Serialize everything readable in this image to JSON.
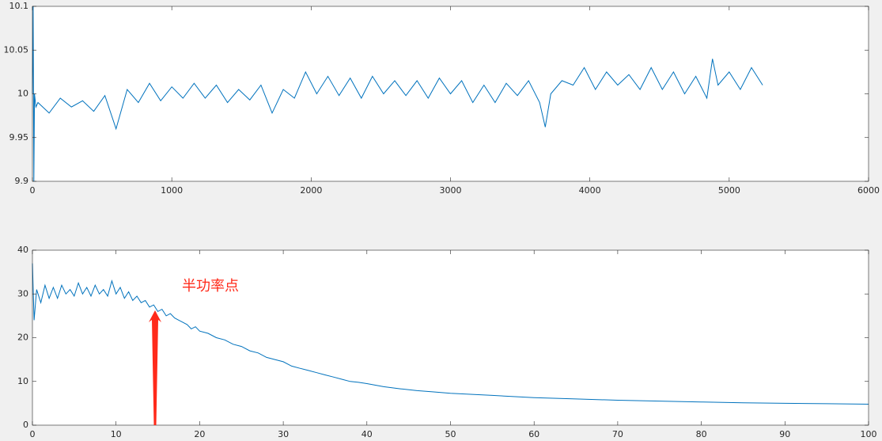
{
  "chart_data": [
    {
      "type": "line",
      "color": "#0072bd",
      "x": [
        0,
        5,
        10,
        15,
        25,
        40,
        120,
        200,
        280,
        360,
        440,
        520,
        600,
        680,
        760,
        840,
        920,
        1000,
        1080,
        1160,
        1240,
        1320,
        1400,
        1480,
        1560,
        1640,
        1720,
        1800,
        1880,
        1960,
        2040,
        2120,
        2200,
        2280,
        2360,
        2440,
        2520,
        2600,
        2680,
        2760,
        2840,
        2920,
        3000,
        3080,
        3160,
        3240,
        3320,
        3400,
        3480,
        3560,
        3640,
        3680,
        3720,
        3800,
        3880,
        3960,
        4040,
        4120,
        4200,
        4280,
        4360,
        4440,
        4520,
        4600,
        4680,
        4760,
        4840,
        4880,
        4920,
        5000,
        5080,
        5160,
        5240
      ],
      "values": [
        10.0,
        10.1,
        9.9,
        10.0,
        9.985,
        9.99,
        9.978,
        9.995,
        9.985,
        9.992,
        9.98,
        9.998,
        9.96,
        10.005,
        9.99,
        10.012,
        9.992,
        10.008,
        9.995,
        10.012,
        9.995,
        10.01,
        9.99,
        10.005,
        9.993,
        10.01,
        9.978,
        10.005,
        9.995,
        10.025,
        10.0,
        10.02,
        9.998,
        10.018,
        9.995,
        10.02,
        10.0,
        10.015,
        9.998,
        10.015,
        9.995,
        10.018,
        10.0,
        10.015,
        9.99,
        10.01,
        9.99,
        10.012,
        9.998,
        10.015,
        9.99,
        9.962,
        10.0,
        10.015,
        10.01,
        10.03,
        10.005,
        10.025,
        10.01,
        10.022,
        10.005,
        10.03,
        10.005,
        10.025,
        10.0,
        10.02,
        9.995,
        10.04,
        10.01,
        10.025,
        10.005,
        10.03,
        10.01
      ],
      "xlim": [
        0,
        6000
      ],
      "xticks": [
        0,
        1000,
        2000,
        3000,
        4000,
        5000,
        6000
      ],
      "ylim": [
        9.9,
        10.1
      ],
      "yticks": [
        9.9,
        9.95,
        10,
        10.05,
        10.1
      ]
    },
    {
      "type": "line",
      "color": "#0072bd",
      "x": [
        0,
        0.2,
        0.5,
        1,
        1.5,
        2,
        2.5,
        3,
        3.5,
        4,
        4.5,
        5,
        5.5,
        6,
        6.5,
        7,
        7.5,
        8,
        8.5,
        9,
        9.5,
        10,
        10.5,
        11,
        11.5,
        12,
        12.5,
        13,
        13.5,
        14,
        14.5,
        15,
        15.5,
        16,
        16.5,
        17,
        17.5,
        18,
        18.5,
        19,
        19.5,
        20,
        21,
        22,
        23,
        24,
        25,
        26,
        27,
        28,
        29,
        30,
        31,
        32,
        33,
        34,
        35,
        36,
        37,
        38,
        39,
        40,
        42,
        44,
        46,
        48,
        50,
        55,
        60,
        65,
        70,
        75,
        80,
        85,
        90,
        95,
        100
      ],
      "values": [
        37,
        24,
        31,
        28,
        32,
        29,
        31.5,
        29,
        32,
        30,
        31,
        29.5,
        32.5,
        30,
        31.5,
        29.5,
        32,
        30,
        31,
        29.5,
        33,
        30,
        31.5,
        29,
        30.5,
        28.5,
        29.5,
        28,
        28.5,
        27,
        27.5,
        26,
        26.5,
        25,
        25.5,
        24.5,
        24,
        23.5,
        23,
        22,
        22.5,
        21.5,
        21,
        20,
        19.5,
        18.5,
        18,
        17,
        16.5,
        15.5,
        15,
        14.5,
        13.5,
        13,
        12.5,
        12,
        11.5,
        11,
        10.5,
        10,
        9.8,
        9.5,
        8.8,
        8.3,
        7.9,
        7.6,
        7.3,
        6.8,
        6.3,
        6.0,
        5.7,
        5.5,
        5.3,
        5.1,
        5.0,
        4.9,
        4.8
      ],
      "xlim": [
        0,
        100
      ],
      "xticks": [
        0,
        10,
        20,
        30,
        40,
        50,
        60,
        70,
        80,
        90,
        100
      ],
      "ylim": [
        0,
        40
      ],
      "yticks": [
        0,
        10,
        20,
        30,
        40
      ],
      "annotation": "半功率点"
    }
  ]
}
